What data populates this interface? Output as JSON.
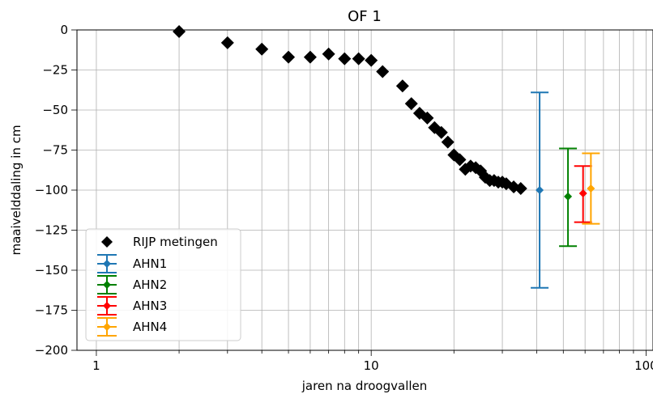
{
  "chart_data": {
    "type": "scatter",
    "title": "OF 1",
    "xlabel": "jaren na droogvallen",
    "ylabel": "maaivelddaling in cm",
    "xscale": "log",
    "xlim": [
      0.85,
      106
    ],
    "ylim": [
      -200,
      0
    ],
    "xticks": [
      1,
      10,
      100
    ],
    "xtick_labels": [
      "1",
      "10",
      "100"
    ],
    "yticks": [
      0,
      -25,
      -50,
      -75,
      -100,
      -125,
      -150,
      -175,
      -200
    ],
    "ytick_labels": [
      "0",
      "−25",
      "−50",
      "−75",
      "−100",
      "−125",
      "−150",
      "−175",
      "−200"
    ],
    "grid": true,
    "legend_position": "lower-left",
    "series": [
      {
        "name": "RIJP metingen",
        "kind": "scatter",
        "marker": "diamond",
        "color": "#000000",
        "x": [
          2,
          3,
          4,
          5,
          6,
          7,
          8,
          9,
          10,
          11,
          13,
          14,
          15,
          16,
          17,
          18,
          19,
          20,
          21,
          22,
          23,
          24,
          25,
          26,
          27,
          28,
          29,
          30,
          31,
          33,
          35
        ],
        "y": [
          -1,
          -8,
          -12,
          -17,
          -17,
          -15,
          -18,
          -18,
          -19,
          -26,
          -35,
          -46,
          -52,
          -55,
          -61,
          -64,
          -70,
          -78,
          -81,
          -87,
          -85,
          -86,
          -88,
          -92,
          -94,
          -94,
          -95,
          -95,
          -96,
          -98,
          -99
        ]
      },
      {
        "name": "AHN1",
        "kind": "errorbar",
        "color": "#1f77b4",
        "x": 41,
        "y": -100,
        "yerr_low": -161,
        "yerr_high": -39
      },
      {
        "name": "AHN2",
        "kind": "errorbar",
        "color": "#008000",
        "x": 52,
        "y": -104,
        "yerr_low": -135,
        "yerr_high": -74
      },
      {
        "name": "AHN3",
        "kind": "errorbar",
        "color": "#ff0000",
        "x": 59,
        "y": -102,
        "yerr_low": -120,
        "yerr_high": -85
      },
      {
        "name": "AHN4",
        "kind": "errorbar",
        "color": "#ffa500",
        "x": 63,
        "y": -99,
        "yerr_low": -121,
        "yerr_high": -77
      }
    ]
  }
}
